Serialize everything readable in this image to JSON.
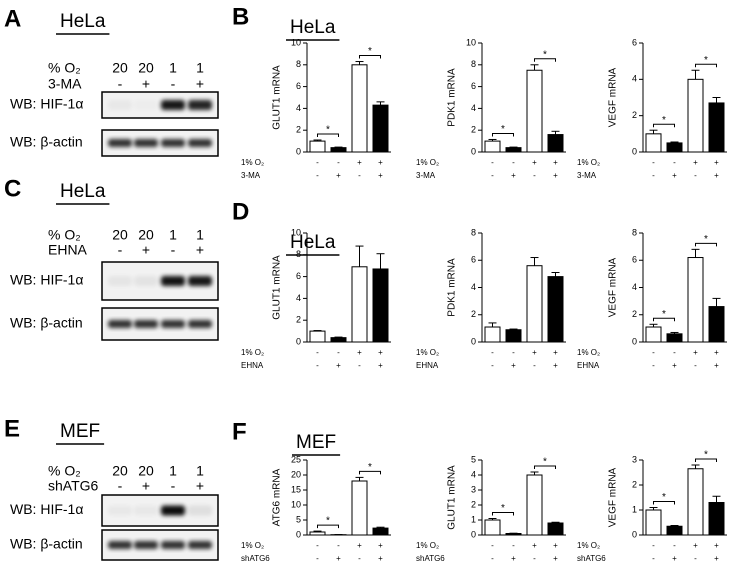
{
  "blots": [
    {
      "letter": "A",
      "title": "HeLa",
      "rows": [
        {
          "label": "% O₂",
          "lanes": [
            "20",
            "20",
            "1",
            "1"
          ]
        },
        {
          "label": "3-MA",
          "lanes": [
            "-",
            "+",
            "-",
            "+"
          ]
        }
      ],
      "bands": [
        "WB: HIF-1α",
        "WB: β-actin"
      ]
    },
    {
      "letter": "C",
      "title": "HeLa",
      "rows": [
        {
          "label": "% O₂",
          "lanes": [
            "20",
            "20",
            "1",
            "1"
          ]
        },
        {
          "label": "EHNA",
          "lanes": [
            "-",
            "+",
            "-",
            "+"
          ]
        }
      ],
      "bands": [
        "WB: HIF-1α",
        "WB: β-actin"
      ]
    },
    {
      "letter": "E",
      "title": "MEF",
      "rows": [
        {
          "label": "% O₂",
          "lanes": [
            "20",
            "20",
            "1",
            "1"
          ]
        },
        {
          "label": "shATG6",
          "lanes": [
            "-",
            "+",
            "-",
            "+"
          ]
        }
      ],
      "bands": [
        "WB: HIF-1α",
        "WB: β-actin"
      ]
    }
  ],
  "panels": [
    {
      "letter": "B",
      "title": "HeLa"
    },
    {
      "letter": "D",
      "title": "HeLa"
    },
    {
      "letter": "F",
      "title": "MEF"
    }
  ],
  "chart_data": [
    {
      "type": "bar",
      "y_label": "GLUT1 mRNA",
      "ylim": [
        0,
        10
      ],
      "yticks": [
        0,
        2,
        4,
        6,
        8,
        10
      ],
      "values": [
        1.0,
        0.4,
        8.0,
        4.3
      ],
      "errors": [
        0.1,
        0.05,
        0.3,
        0.3
      ],
      "colors": [
        "#ffffff",
        "#000000",
        "#ffffff",
        "#000000"
      ],
      "significance": [
        {
          "bars": [
            0,
            1
          ],
          "label": "*"
        },
        {
          "bars": [
            2,
            3
          ],
          "label": "*"
        }
      ],
      "conditions": [
        {
          "label": "1% O₂",
          "marks": [
            "-",
            "-",
            "+",
            "+"
          ]
        },
        {
          "label": "3-MA",
          "marks": [
            "-",
            "+",
            "-",
            "+"
          ]
        }
      ]
    },
    {
      "type": "bar",
      "y_label": "PDK1 mRNA",
      "ylim": [
        0,
        10
      ],
      "yticks": [
        0,
        2,
        4,
        6,
        8,
        10
      ],
      "values": [
        1.0,
        0.4,
        7.5,
        1.6
      ],
      "errors": [
        0.15,
        0.05,
        0.5,
        0.3
      ],
      "colors": [
        "#ffffff",
        "#000000",
        "#ffffff",
        "#000000"
      ],
      "significance": [
        {
          "bars": [
            0,
            1
          ],
          "label": "*"
        },
        {
          "bars": [
            2,
            3
          ],
          "label": "*"
        }
      ],
      "conditions": [
        {
          "label": "1% O₂",
          "marks": [
            "-",
            "-",
            "+",
            "+"
          ]
        },
        {
          "label": "3-MA",
          "marks": [
            "-",
            "+",
            "-",
            "+"
          ]
        }
      ]
    },
    {
      "type": "bar",
      "y_label": "VEGF mRNA",
      "ylim": [
        0,
        6
      ],
      "yticks": [
        0,
        2,
        4,
        6
      ],
      "values": [
        1.0,
        0.5,
        4.0,
        2.7
      ],
      "errors": [
        0.2,
        0.05,
        0.5,
        0.3
      ],
      "colors": [
        "#ffffff",
        "#000000",
        "#ffffff",
        "#000000"
      ],
      "significance": [
        {
          "bars": [
            0,
            1
          ],
          "label": "*"
        },
        {
          "bars": [
            2,
            3
          ],
          "label": "*"
        }
      ],
      "conditions": [
        {
          "label": "1% O₂",
          "marks": [
            "-",
            "-",
            "+",
            "+"
          ]
        },
        {
          "label": "3-MA",
          "marks": [
            "-",
            "+",
            "-",
            "+"
          ]
        }
      ]
    },
    {
      "type": "bar",
      "y_label": "GLUT1 mRNA",
      "ylim": [
        0,
        10
      ],
      "yticks": [
        0,
        2,
        4,
        6,
        8,
        10
      ],
      "values": [
        1.0,
        0.4,
        6.9,
        6.7
      ],
      "errors": [
        0.05,
        0.05,
        1.9,
        1.4
      ],
      "colors": [
        "#ffffff",
        "#000000",
        "#ffffff",
        "#000000"
      ],
      "significance": [],
      "conditions": [
        {
          "label": "1% O₂",
          "marks": [
            "-",
            "-",
            "+",
            "+"
          ]
        },
        {
          "label": "EHNA",
          "marks": [
            "-",
            "+",
            "-",
            "+"
          ]
        }
      ]
    },
    {
      "type": "bar",
      "y_label": "PDK1 mRNA",
      "ylim": [
        0,
        8
      ],
      "yticks": [
        0,
        2,
        4,
        6,
        8
      ],
      "values": [
        1.1,
        0.9,
        5.6,
        4.8
      ],
      "errors": [
        0.3,
        0.05,
        0.6,
        0.3
      ],
      "colors": [
        "#ffffff",
        "#000000",
        "#ffffff",
        "#000000"
      ],
      "significance": [],
      "conditions": [
        {
          "label": "1% O₂",
          "marks": [
            "-",
            "-",
            "+",
            "+"
          ]
        },
        {
          "label": "EHNA",
          "marks": [
            "-",
            "+",
            "-",
            "+"
          ]
        }
      ]
    },
    {
      "type": "bar",
      "y_label": "VEGF mRNA",
      "ylim": [
        0,
        8
      ],
      "yticks": [
        0,
        2,
        4,
        6,
        8
      ],
      "values": [
        1.1,
        0.6,
        6.2,
        2.6
      ],
      "errors": [
        0.2,
        0.1,
        0.6,
        0.6
      ],
      "colors": [
        "#ffffff",
        "#000000",
        "#ffffff",
        "#000000"
      ],
      "significance": [
        {
          "bars": [
            0,
            1
          ],
          "label": "*"
        },
        {
          "bars": [
            2,
            3
          ],
          "label": "*"
        }
      ],
      "conditions": [
        {
          "label": "1% O₂",
          "marks": [
            "-",
            "-",
            "+",
            "+"
          ]
        },
        {
          "label": "EHNA",
          "marks": [
            "-",
            "+",
            "-",
            "+"
          ]
        }
      ]
    },
    {
      "type": "bar",
      "y_label": "ATG6 mRNA",
      "ylim": [
        0,
        25
      ],
      "yticks": [
        0,
        5,
        10,
        15,
        20,
        25
      ],
      "values": [
        1.0,
        0.1,
        18.0,
        2.3
      ],
      "errors": [
        0.3,
        0.05,
        1.2,
        0.3
      ],
      "colors": [
        "#ffffff",
        "#000000",
        "#ffffff",
        "#000000"
      ],
      "significance": [
        {
          "bars": [
            0,
            1
          ],
          "label": "*"
        },
        {
          "bars": [
            2,
            3
          ],
          "label": "*"
        }
      ],
      "conditions": [
        {
          "label": "1% O₂",
          "marks": [
            "-",
            "-",
            "+",
            "+"
          ]
        },
        {
          "label": "shATG6",
          "marks": [
            "-",
            "+",
            "-",
            "+"
          ]
        }
      ]
    },
    {
      "type": "bar",
      "y_label": "GLUT1 mRNA",
      "ylim": [
        0,
        5
      ],
      "yticks": [
        0,
        1,
        2,
        3,
        4,
        5
      ],
      "values": [
        1.0,
        0.1,
        4.0,
        0.8
      ],
      "errors": [
        0.1,
        0.02,
        0.2,
        0.05
      ],
      "colors": [
        "#ffffff",
        "#000000",
        "#ffffff",
        "#000000"
      ],
      "significance": [
        {
          "bars": [
            0,
            1
          ],
          "label": "*"
        },
        {
          "bars": [
            2,
            3
          ],
          "label": "*"
        }
      ],
      "conditions": [
        {
          "label": "1% O₂",
          "marks": [
            "-",
            "-",
            "+",
            "+"
          ]
        },
        {
          "label": "shATG6",
          "marks": [
            "-",
            "+",
            "-",
            "+"
          ]
        }
      ]
    },
    {
      "type": "bar",
      "y_label": "VEGF mRNA",
      "ylim": [
        0,
        3
      ],
      "yticks": [
        0,
        1,
        2,
        3
      ],
      "values": [
        1.0,
        0.35,
        2.65,
        1.3
      ],
      "errors": [
        0.1,
        0.03,
        0.15,
        0.25
      ],
      "colors": [
        "#ffffff",
        "#000000",
        "#ffffff",
        "#000000"
      ],
      "significance": [
        {
          "bars": [
            0,
            1
          ],
          "label": "*"
        },
        {
          "bars": [
            2,
            3
          ],
          "label": "*"
        }
      ],
      "conditions": [
        {
          "label": "1% O₂",
          "marks": [
            "-",
            "-",
            "+",
            "+"
          ]
        },
        {
          "label": "shATG6",
          "marks": [
            "-",
            "+",
            "-",
            "+"
          ]
        }
      ]
    }
  ]
}
